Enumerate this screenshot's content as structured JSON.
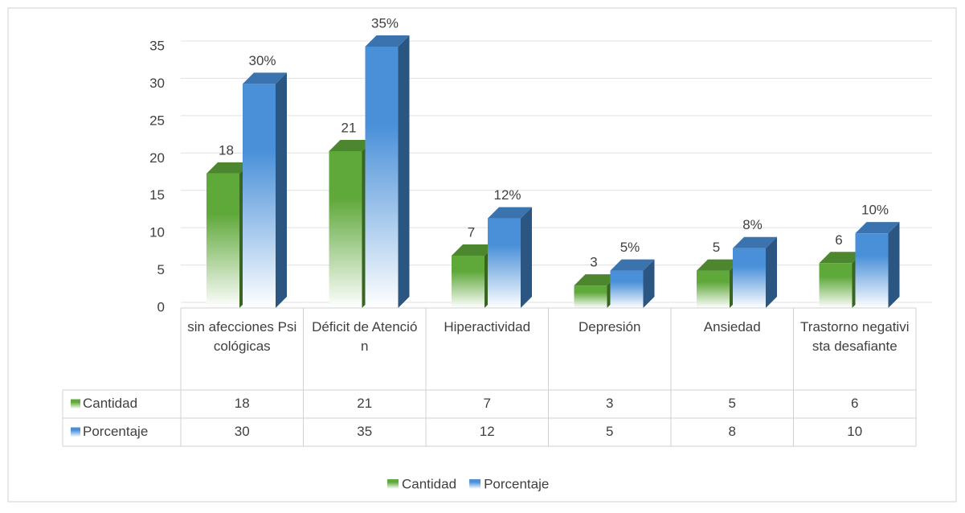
{
  "chart_data": {
    "type": "bar3d",
    "categories": [
      "sin afecciones Psicológicas",
      "Déficit de Atención",
      "Hiperactividad",
      "Depresión",
      "Ansiedad",
      "Trastorno negativista desafiante"
    ],
    "series": [
      {
        "name": "Cantidad",
        "color": "#5fa83a",
        "values": [
          18,
          21,
          7,
          3,
          5,
          6
        ]
      },
      {
        "name": "Porcentaje",
        "color": "#4a90d9",
        "values": [
          30,
          35,
          12,
          5,
          8,
          10
        ],
        "value_labels": [
          "30%",
          "35%",
          "12%",
          "5%",
          "8%",
          "10%"
        ]
      }
    ],
    "ylim": [
      0,
      35
    ],
    "yticks": [
      0,
      5,
      10,
      15,
      20,
      25,
      30,
      35
    ],
    "grid": true,
    "data_table": true,
    "legend": "bottom"
  }
}
